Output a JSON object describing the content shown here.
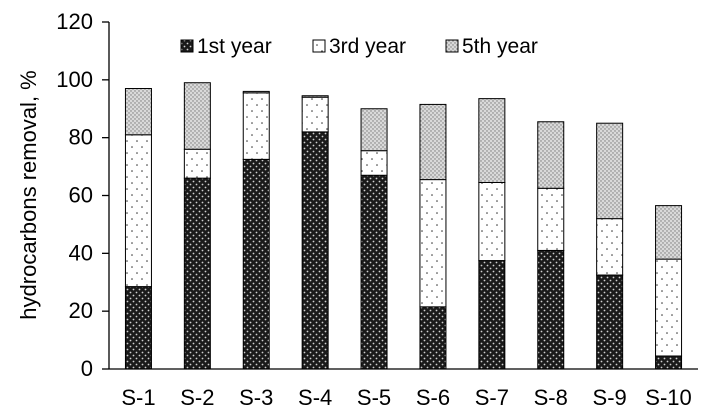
{
  "chart_data": {
    "type": "bar",
    "stacked": true,
    "categories": [
      "S-1",
      "S-2",
      "S-3",
      "S-4",
      "S-5",
      "S-6",
      "S-7",
      "S-8",
      "S-9",
      "S-10"
    ],
    "series": [
      {
        "name": "1st year",
        "values": [
          28.5,
          66,
          72.5,
          82,
          67,
          21.5,
          37.5,
          41,
          32.5,
          4.5
        ],
        "pattern": "dense-dark-dots"
      },
      {
        "name": "3rd year",
        "values": [
          52.5,
          10,
          23,
          12,
          8.5,
          44,
          27,
          21.5,
          19.5,
          33.5
        ],
        "pattern": "sparse-dots-white"
      },
      {
        "name": "5th year",
        "values": [
          16,
          23,
          0.5,
          0.5,
          14.5,
          26,
          29,
          23,
          33,
          18.5
        ],
        "pattern": "fine-grey-dots"
      }
    ],
    "title": "",
    "xlabel": "",
    "ylabel": "hydrocarbons removal, %",
    "ylim": [
      0,
      120
    ],
    "yticks": [
      "0",
      "20",
      "40",
      "60",
      "80",
      "100",
      "120"
    ],
    "grid": false,
    "legend_position": "top, horizontal"
  }
}
